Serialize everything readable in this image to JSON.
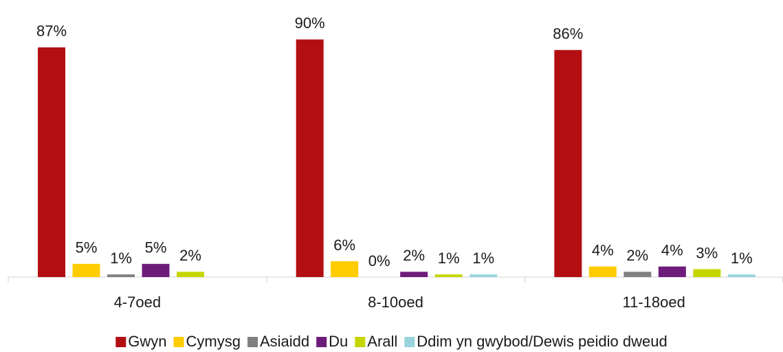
{
  "chart_data": {
    "type": "bar",
    "categories": [
      "4-7oed",
      "8-10oed",
      "11-18oed"
    ],
    "series": [
      {
        "name": "Gwyn",
        "color": "#b30f12",
        "values": [
          87,
          90,
          86
        ],
        "value_labels": [
          "87%",
          "90%",
          "86%"
        ]
      },
      {
        "name": "Cymysg",
        "color": "#ffcc00",
        "values": [
          5,
          6,
          4
        ],
        "value_labels": [
          "5%",
          "6%",
          "4%"
        ]
      },
      {
        "name": "Asiaidd",
        "color": "#808080",
        "values": [
          1,
          0,
          2
        ],
        "value_labels": [
          "1%",
          "0%",
          "2%"
        ]
      },
      {
        "name": "Du",
        "color": "#6e1c7c",
        "values": [
          5,
          2,
          4
        ],
        "value_labels": [
          "5%",
          "2%",
          "4%"
        ]
      },
      {
        "name": "Arall",
        "color": "#c4d600",
        "values": [
          2,
          1,
          3
        ],
        "value_labels": [
          "2%",
          "1%",
          "3%"
        ]
      },
      {
        "name": "Ddim yn gwybod/Dewis peidio dweud",
        "color": "#99d4de",
        "values": [
          null,
          1,
          1
        ],
        "value_labels": [
          null,
          "1%",
          "1%"
        ]
      }
    ],
    "legend": "bottom"
  }
}
